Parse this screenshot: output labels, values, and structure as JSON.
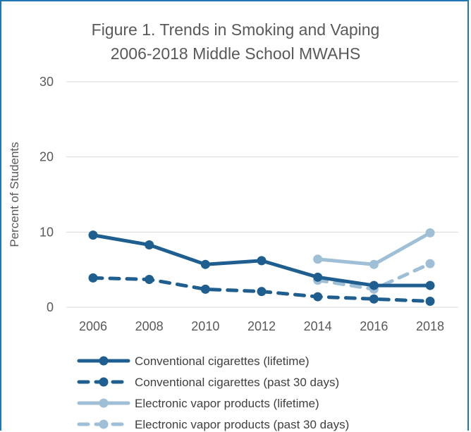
{
  "chart_data": {
    "type": "line",
    "title_line1": "Figure 1. Trends in Smoking and Vaping",
    "title_line2": "2006-2018 Middle School MWAHS",
    "xlabel": "",
    "ylabel": "Percent of Students",
    "x": [
      "2006",
      "2008",
      "2010",
      "2012",
      "2014",
      "2016",
      "2018"
    ],
    "yticks": [
      "0",
      "10",
      "20",
      "30"
    ],
    "ylim": [
      0,
      30
    ],
    "grid": true,
    "legend_position": "bottom",
    "series": [
      {
        "name": "Conventional cigarettes (lifetime)",
        "color": "#1f5f8f",
        "style": "solid",
        "values": [
          9.6,
          8.3,
          5.7,
          6.2,
          4.0,
          2.9,
          2.9
        ]
      },
      {
        "name": "Conventional cigarettes (past 30 days)",
        "color": "#1f5f8f",
        "style": "dashed",
        "values": [
          3.9,
          3.7,
          2.4,
          2.1,
          1.4,
          1.1,
          0.8
        ]
      },
      {
        "name": "Electronic vapor products (lifetime)",
        "color": "#9fbfd6",
        "style": "solid",
        "values": [
          null,
          null,
          null,
          null,
          6.4,
          5.7,
          9.9
        ]
      },
      {
        "name": "Electronic vapor products (past 30 days)",
        "color": "#9fbfd6",
        "style": "dashed",
        "values": [
          null,
          null,
          null,
          null,
          3.6,
          2.4,
          5.8
        ]
      }
    ]
  }
}
